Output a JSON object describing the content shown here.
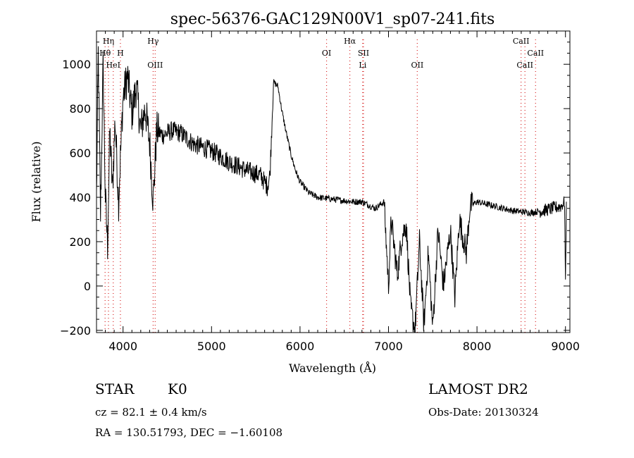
{
  "chart_data": {
    "type": "line",
    "title": "spec-56376-GAC129N00V1_sp07-241.fits",
    "xlabel": "Wavelength (Å)",
    "ylabel": "Flux (relative)",
    "xlim": [
      3700,
      9050
    ],
    "ylim": [
      -210,
      1150
    ],
    "xticks": [
      4000,
      5000,
      6000,
      7000,
      8000,
      9000
    ],
    "yticks": [
      -200,
      0,
      200,
      400,
      600,
      800,
      1000
    ],
    "grid": false,
    "legend": "none",
    "series_color": "#000000",
    "marker_line_color": "#d62020",
    "spectral_lines": [
      {
        "label": "Hη",
        "x": 3835,
        "row": 0
      },
      {
        "label": "Hθ",
        "x": 3797,
        "row": 1
      },
      {
        "label": "H",
        "x": 3970,
        "row": 1
      },
      {
        "label": "HeI",
        "x": 3889,
        "row": 2
      },
      {
        "label": "Hγ",
        "x": 4340,
        "row": 0
      },
      {
        "label": "OIII",
        "x": 4363,
        "row": 2
      },
      {
        "label": "OI",
        "x": 6300,
        "row": 1
      },
      {
        "label": "Hα",
        "x": 6563,
        "row": 0
      },
      {
        "label": "SII",
        "x": 6717,
        "row": 1
      },
      {
        "label": "Li",
        "x": 6708,
        "row": 2
      },
      {
        "label": "OII",
        "x": 7325,
        "row": 2
      },
      {
        "label": "CaII",
        "x": 8498,
        "row": 0
      },
      {
        "label": "CaII",
        "x": 8662,
        "row": 1
      },
      {
        "label": "CaII",
        "x": 8542,
        "row": 2
      }
    ],
    "anchors": [
      [
        3700,
        400
      ],
      [
        3720,
        1050
      ],
      [
        3745,
        320
      ],
      [
        3775,
        1000
      ],
      [
        3800,
        400
      ],
      [
        3825,
        180
      ],
      [
        3850,
        700
      ],
      [
        3880,
        430
      ],
      [
        3910,
        750
      ],
      [
        3950,
        380
      ],
      [
        3970,
        580
      ],
      [
        4000,
        850
      ],
      [
        4050,
        950
      ],
      [
        4100,
        780
      ],
      [
        4150,
        900
      ],
      [
        4200,
        700
      ],
      [
        4250,
        800
      ],
      [
        4300,
        650
      ],
      [
        4340,
        380
      ],
      [
        4380,
        700
      ],
      [
        4450,
        680
      ],
      [
        4550,
        700
      ],
      [
        4650,
        690
      ],
      [
        4800,
        640
      ],
      [
        5000,
        610
      ],
      [
        5200,
        560
      ],
      [
        5400,
        520
      ],
      [
        5550,
        500
      ],
      [
        5630,
        450
      ],
      [
        5660,
        500
      ],
      [
        5700,
        920
      ],
      [
        5750,
        900
      ],
      [
        5800,
        780
      ],
      [
        5850,
        680
      ],
      [
        5900,
        590
      ],
      [
        5950,
        520
      ],
      [
        6000,
        470
      ],
      [
        6100,
        420
      ],
      [
        6200,
        400
      ],
      [
        6400,
        390
      ],
      [
        6600,
        380
      ],
      [
        6700,
        380
      ],
      [
        6850,
        350
      ],
      [
        6950,
        380
      ],
      [
        7000,
        0
      ],
      [
        7030,
        300
      ],
      [
        7100,
        50
      ],
      [
        7150,
        220
      ],
      [
        7200,
        280
      ],
      [
        7250,
        -100
      ],
      [
        7300,
        -200
      ],
      [
        7350,
        200
      ],
      [
        7400,
        -180
      ],
      [
        7450,
        150
      ],
      [
        7500,
        -190
      ],
      [
        7560,
        250
      ],
      [
        7620,
        0
      ],
      [
        7700,
        250
      ],
      [
        7750,
        -50
      ],
      [
        7800,
        300
      ],
      [
        7880,
        150
      ],
      [
        7920,
        360
      ],
      [
        8000,
        380
      ],
      [
        8200,
        360
      ],
      [
        8400,
        340
      ],
      [
        8600,
        330
      ],
      [
        8750,
        340
      ],
      [
        8850,
        350
      ],
      [
        8950,
        360
      ],
      [
        8990,
        380
      ],
      [
        9000,
        0
      ],
      [
        9010,
        380
      ]
    ]
  },
  "info": {
    "object_class": "STAR",
    "subclass": "K0",
    "survey": "LAMOST DR2",
    "redshift": "cz = 82.1 ± 0.4 km/s",
    "obs_date": "Obs-Date: 20130324",
    "coords": "RA = 130.51793, DEC =  −1.60108"
  }
}
